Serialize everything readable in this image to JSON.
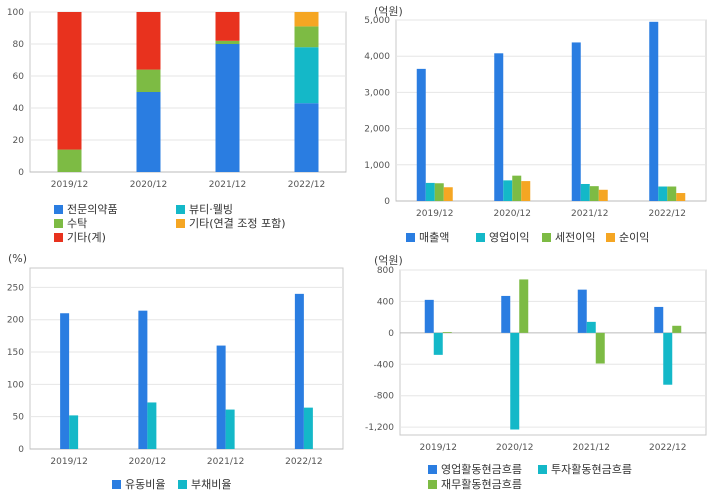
{
  "chart_data": [
    {
      "id": "sales-composition",
      "type": "bar",
      "stacked": true,
      "categories": [
        "2019/12",
        "2020/12",
        "2021/12",
        "2022/12"
      ],
      "ylim": [
        0,
        100
      ],
      "yticks": [
        0,
        20,
        40,
        60,
        80,
        100
      ],
      "series": [
        {
          "name": "전문의약품",
          "color": "#2a7de1",
          "values": [
            0,
            50,
            80,
            43
          ]
        },
        {
          "name": "뷰티·웰빙",
          "color": "#14b8c8",
          "values": [
            0,
            0,
            0,
            35
          ]
        },
        {
          "name": "수탁",
          "color": "#7dbb44",
          "values": [
            14,
            14,
            2,
            13
          ]
        },
        {
          "name": "기타(연결 조정 포함)",
          "color": "#f5a623",
          "values": [
            0,
            0,
            0,
            9
          ]
        },
        {
          "name": "기타(계)",
          "color": "#e8321e",
          "values": [
            86,
            36,
            18,
            0
          ]
        }
      ],
      "legend_order": [
        "전문의약품",
        "뷰티·웰빙",
        "수탁",
        "기타(연결 조정 포함)",
        "기타(계)"
      ],
      "unit": ""
    },
    {
      "id": "income",
      "type": "bar",
      "categories": [
        "2019/12",
        "2020/12",
        "2021/12",
        "2022/12"
      ],
      "ylim": [
        0,
        5000
      ],
      "yticks": [
        0,
        1000,
        2000,
        3000,
        4000,
        5000
      ],
      "ytick_labels": [
        "0",
        "1,000",
        "2,000",
        "3,000",
        "4,000",
        "5,000"
      ],
      "unit": "(억원)",
      "series": [
        {
          "name": "매출액",
          "color": "#2a7de1",
          "values": [
            3650,
            4080,
            4380,
            4950
          ]
        },
        {
          "name": "영업이익",
          "color": "#14b8c8",
          "values": [
            500,
            570,
            470,
            400
          ]
        },
        {
          "name": "세전이익",
          "color": "#7dbb44",
          "values": [
            490,
            700,
            410,
            400
          ]
        },
        {
          "name": "순이익",
          "color": "#f5a623",
          "values": [
            380,
            550,
            310,
            220
          ]
        }
      ]
    },
    {
      "id": "ratios",
      "type": "bar",
      "categories": [
        "2019/12",
        "2020/12",
        "2021/12",
        "2022/12"
      ],
      "ylim": [
        0,
        280
      ],
      "yticks": [
        0,
        50,
        100,
        150,
        200,
        250
      ],
      "unit": "(%)",
      "series": [
        {
          "name": "유동비율",
          "color": "#2a7de1",
          "values": [
            210,
            214,
            160,
            240
          ]
        },
        {
          "name": "부채비율",
          "color": "#14b8c8",
          "values": [
            52,
            72,
            61,
            64
          ]
        }
      ]
    },
    {
      "id": "cashflow",
      "type": "bar",
      "categories": [
        "2019/12",
        "2020/12",
        "2021/12",
        "2022/12"
      ],
      "ylim": [
        -1300,
        800
      ],
      "yticks": [
        -1200,
        -800,
        -400,
        0,
        400,
        800
      ],
      "ytick_labels": [
        "-1,200",
        "-800",
        "-400",
        "0",
        "400",
        "800"
      ],
      "unit": "(억원)",
      "series": [
        {
          "name": "영업활동현금흐름",
          "color": "#2a7de1",
          "values": [
            420,
            470,
            550,
            330
          ]
        },
        {
          "name": "투자활동현금흐름",
          "color": "#14b8c8",
          "values": [
            -280,
            -1230,
            140,
            -660
          ]
        },
        {
          "name": "재무활동현금흐름",
          "color": "#7dbb44",
          "values": [
            10,
            680,
            -390,
            90
          ]
        }
      ]
    }
  ]
}
